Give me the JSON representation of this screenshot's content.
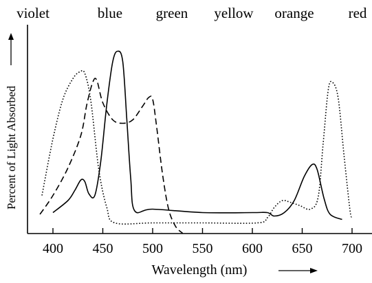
{
  "chart_data": {
    "type": "line",
    "title": "",
    "xlabel": "Wavelength (nm)",
    "ylabel": "Percent of Light Absorbed",
    "xlim": [
      380,
      705
    ],
    "x_ticks": [
      400,
      450,
      500,
      550,
      600,
      650,
      700
    ],
    "y_ticks": [],
    "grid": false,
    "legend": "none",
    "color_labels": [
      "violet",
      "blue",
      "green",
      "yellow",
      "orange",
      "red"
    ],
    "series": [
      {
        "style": "solid",
        "points": [
          [
            400,
            0.05
          ],
          [
            415,
            0.12
          ],
          [
            422,
            0.18
          ],
          [
            428,
            0.24
          ],
          [
            432,
            0.23
          ],
          [
            436,
            0.16
          ],
          [
            442,
            0.15
          ],
          [
            448,
            0.35
          ],
          [
            454,
            0.68
          ],
          [
            460,
            0.93
          ],
          [
            465,
            0.99
          ],
          [
            470,
            0.93
          ],
          [
            474,
            0.6
          ],
          [
            478,
            0.25
          ],
          [
            482,
            0.06
          ],
          [
            500,
            0.07
          ],
          [
            550,
            0.05
          ],
          [
            600,
            0.05
          ],
          [
            615,
            0.05
          ],
          [
            622,
            0.03
          ],
          [
            632,
            0.05
          ],
          [
            642,
            0.12
          ],
          [
            652,
            0.26
          ],
          [
            660,
            0.33
          ],
          [
            665,
            0.3
          ],
          [
            672,
            0.13
          ],
          [
            678,
            0.04
          ],
          [
            690,
            0.01
          ]
        ]
      },
      {
        "style": "dotted",
        "points": [
          [
            389,
            0.15
          ],
          [
            400,
            0.48
          ],
          [
            410,
            0.71
          ],
          [
            420,
            0.83
          ],
          [
            427,
            0.87
          ],
          [
            432,
            0.86
          ],
          [
            438,
            0.7
          ],
          [
            446,
            0.3
          ],
          [
            454,
            0.08
          ],
          [
            462,
            -0.01
          ],
          [
            500,
            -0.01
          ],
          [
            550,
            -0.01
          ],
          [
            605,
            -0.01
          ],
          [
            615,
            0.02
          ],
          [
            622,
            0.08
          ],
          [
            630,
            0.12
          ],
          [
            638,
            0.11
          ],
          [
            648,
            0.09
          ],
          [
            658,
            0.07
          ],
          [
            666,
            0.14
          ],
          [
            671,
            0.45
          ],
          [
            676,
            0.76
          ],
          [
            680,
            0.81
          ],
          [
            686,
            0.72
          ],
          [
            692,
            0.38
          ],
          [
            698,
            0.06
          ],
          [
            700,
            0.03
          ]
        ]
      },
      {
        "style": "dashed",
        "points": [
          [
            387,
            0.04
          ],
          [
            400,
            0.15
          ],
          [
            415,
            0.31
          ],
          [
            428,
            0.5
          ],
          [
            434,
            0.68
          ],
          [
            440,
            0.81
          ],
          [
            444,
            0.82
          ],
          [
            450,
            0.69
          ],
          [
            460,
            0.59
          ],
          [
            470,
            0.57
          ],
          [
            480,
            0.59
          ],
          [
            490,
            0.67
          ],
          [
            496,
            0.72
          ],
          [
            500,
            0.71
          ],
          [
            504,
            0.55
          ],
          [
            510,
            0.27
          ],
          [
            516,
            0.07
          ],
          [
            523,
            -0.03
          ],
          [
            530,
            -0.07
          ]
        ]
      }
    ]
  }
}
